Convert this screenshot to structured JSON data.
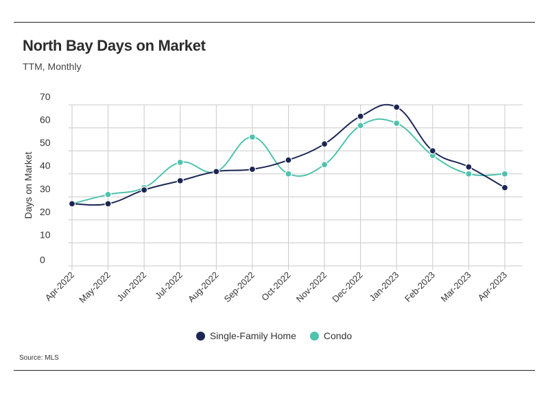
{
  "header": {
    "title": "North Bay Days on Market",
    "subtitle": "TTM, Monthly"
  },
  "footer": {
    "source": "Source:  MLS"
  },
  "colors": {
    "single_family": "#1b2654",
    "condo": "#4fc2ad",
    "grid": "#c9c9c9",
    "text": "#333333"
  },
  "chart_data": {
    "type": "line",
    "title": "North Bay Days on Market",
    "subtitle": "TTM, Monthly",
    "xlabel": "",
    "ylabel": "Days on Market",
    "ylim": [
      0,
      70
    ],
    "yticks": [
      0,
      10,
      20,
      30,
      40,
      50,
      60,
      70
    ],
    "grid": true,
    "legend_position": "bottom",
    "smooth": true,
    "categories": [
      "Apr-2022",
      "May-2022",
      "Jun-2022",
      "Jul-2022",
      "Aug-2022",
      "Sep-2022",
      "Oct-2022",
      "Nov-2022",
      "Dec-2022",
      "Jan-2023",
      "Feb-2023",
      "Mar-2023",
      "Apr-2023"
    ],
    "series": [
      {
        "name": "Single-Family Home",
        "color": "#1b2654",
        "values": [
          27,
          27,
          33,
          37,
          41,
          42,
          46,
          53,
          65,
          69,
          50,
          43,
          34
        ]
      },
      {
        "name": "Condo",
        "color": "#4fc2ad",
        "values": [
          27,
          31,
          34,
          45,
          41,
          56,
          40,
          44,
          61,
          62,
          48,
          40,
          40
        ]
      }
    ],
    "source": "Source:  MLS"
  }
}
